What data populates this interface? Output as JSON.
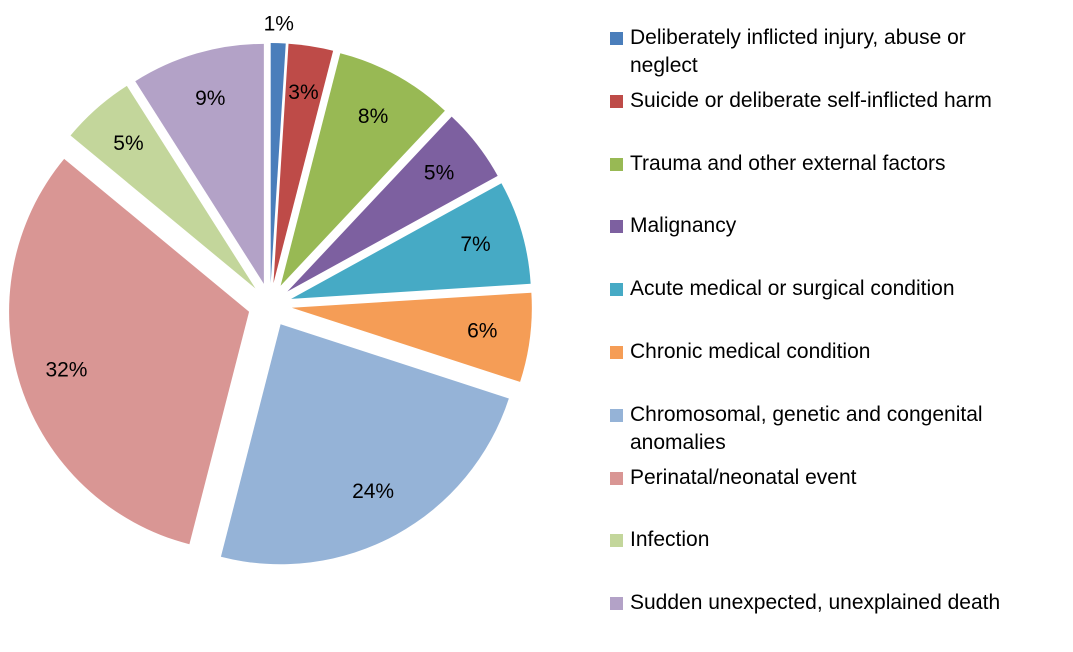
{
  "chart_data": {
    "type": "pie",
    "categories": [
      "Deliberately inflicted injury, abuse or neglect",
      "Suicide or deliberate self-inflicted harm",
      "Trauma and other external factors",
      "Malignancy",
      "Acute medical or surgical condition",
      "Chronic medical condition",
      "Chromosomal, genetic and congenital anomalies",
      "Perinatal/neonatal event",
      "Infection",
      "Sudden unexpected, unexplained death"
    ],
    "values": [
      1,
      3,
      8,
      5,
      7,
      6,
      24,
      32,
      5,
      9
    ],
    "value_labels": [
      "1%",
      "3%",
      "8%",
      "5%",
      "7%",
      "6%",
      "24%",
      "32%",
      "5%",
      "9%"
    ],
    "colors": [
      "#4a7ebb",
      "#be4b48",
      "#98b954",
      "#7d60a0",
      "#46aac5",
      "#f59d56",
      "#95b3d7",
      "#d99694",
      "#c3d69b",
      "#b3a2c7"
    ],
    "legend": "right"
  }
}
